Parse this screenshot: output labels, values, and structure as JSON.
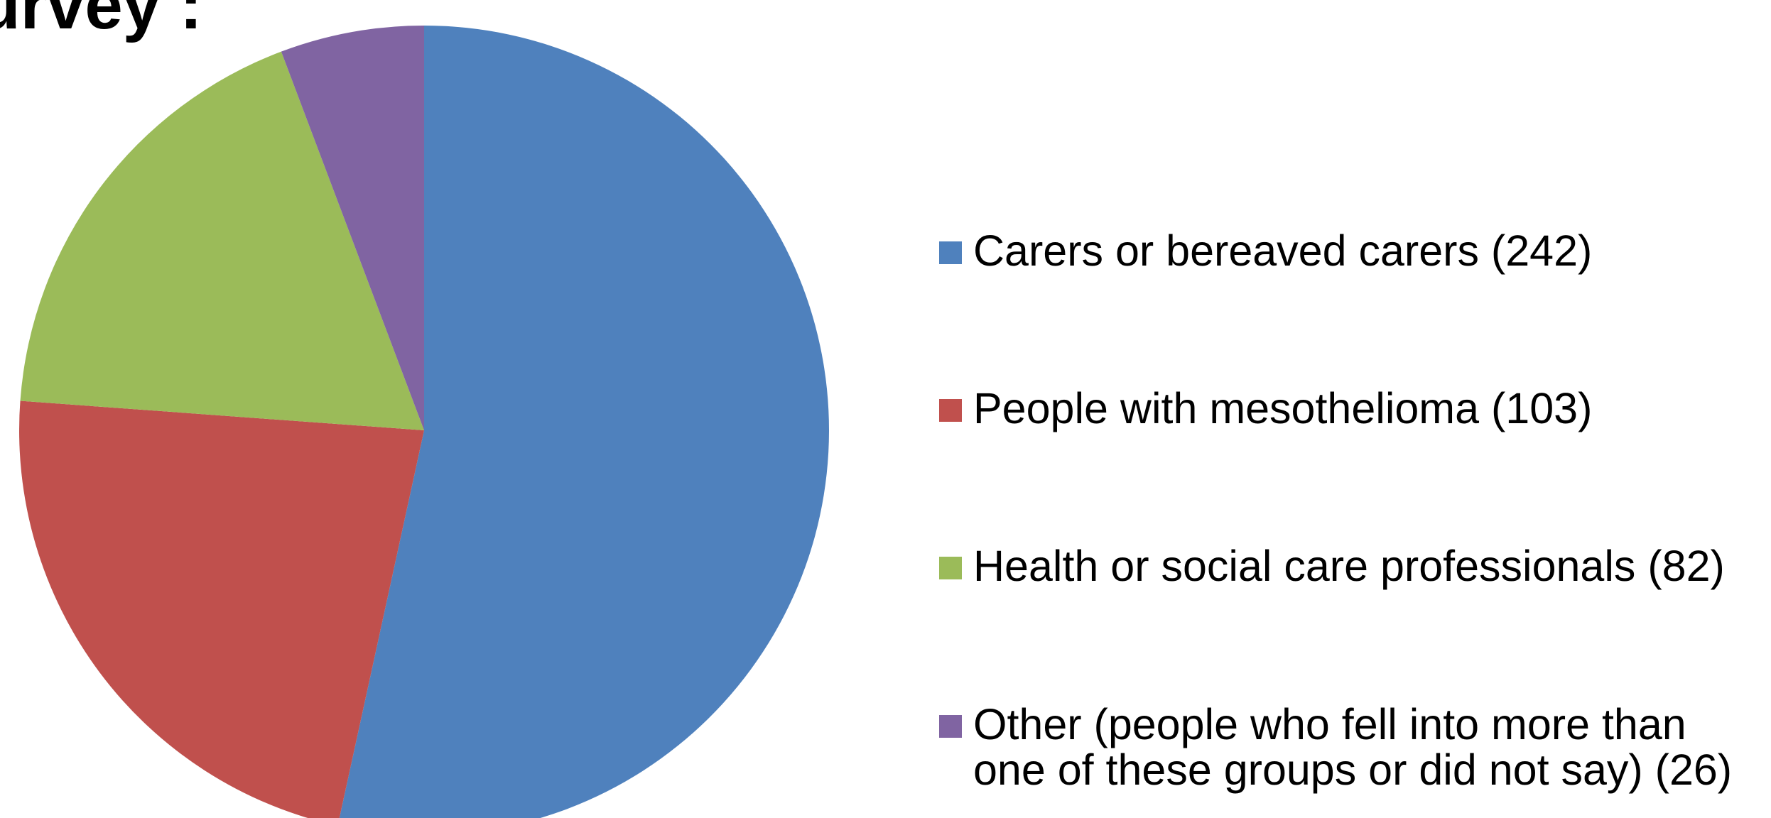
{
  "page": {
    "title": "urvey :"
  },
  "chart_data": {
    "type": "pie",
    "start_angle_deg": 0,
    "direction": "clockwise",
    "slices": [
      {
        "label": "Carers or bereaved carers (242)",
        "value": 242,
        "color": "#4F81BD"
      },
      {
        "label": "People with mesothelioma (103)",
        "value": 103,
        "color": "#C0504D"
      },
      {
        "label": "Health or social care professionals (82)",
        "value": 82,
        "color": "#9BBB59"
      },
      {
        "label": "Other (people who fell into more than\none of these groups or did not say) (26)",
        "value": 26,
        "color": "#8064A2"
      }
    ],
    "legend_position": "right"
  }
}
